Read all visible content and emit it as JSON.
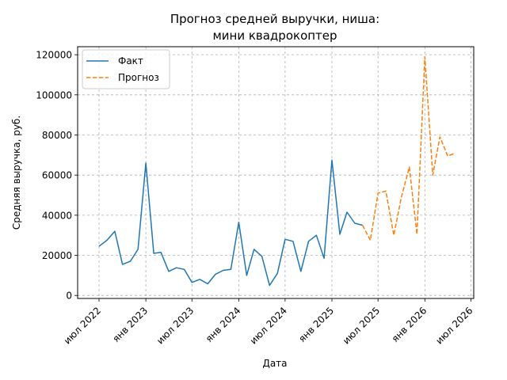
{
  "chart_data": {
    "type": "line",
    "title_lines": [
      "Прогноз средней выручки, ниша:",
      "мини квадрокоптер"
    ],
    "xlabel": "Дата",
    "ylabel": "Средняя выручка, руб.",
    "x_range": [
      "2022-04-08",
      "2026-07-12"
    ],
    "ylim": [
      -1500,
      124000
    ],
    "y_ticks": [
      0,
      20000,
      40000,
      60000,
      80000,
      100000,
      120000
    ],
    "y_tick_labels": [
      "0",
      "20000",
      "40000",
      "60000",
      "80000",
      "100000",
      "120000"
    ],
    "x_ticks": [
      {
        "date": "2022-07-01",
        "label": "июл 2022"
      },
      {
        "date": "2023-01-01",
        "label": "янв 2023"
      },
      {
        "date": "2023-07-01",
        "label": "июл 2023"
      },
      {
        "date": "2024-01-01",
        "label": "янв 2024"
      },
      {
        "date": "2024-07-01",
        "label": "июл 2024"
      },
      {
        "date": "2025-01-01",
        "label": "янв 2025"
      },
      {
        "date": "2025-07-01",
        "label": "июл 2025"
      },
      {
        "date": "2026-01-01",
        "label": "янв 2026"
      },
      {
        "date": "2026-07-01",
        "label": "июл 2026"
      }
    ],
    "grid": true,
    "legend_position": "top-left",
    "series": [
      {
        "name": "Факт",
        "style": "solid",
        "color": "#1f77b4",
        "points": [
          {
            "x": "2022-07-01",
            "y": 24500
          },
          {
            "x": "2022-08-01",
            "y": 27500
          },
          {
            "x": "2022-09-01",
            "y": 32000
          },
          {
            "x": "2022-10-01",
            "y": 15500
          },
          {
            "x": "2022-11-01",
            "y": 17000
          },
          {
            "x": "2022-12-01",
            "y": 23000
          },
          {
            "x": "2023-01-01",
            "y": 66000
          },
          {
            "x": "2023-02-01",
            "y": 21000
          },
          {
            "x": "2023-03-01",
            "y": 21500
          },
          {
            "x": "2023-04-01",
            "y": 12000
          },
          {
            "x": "2023-05-01",
            "y": 13800
          },
          {
            "x": "2023-06-01",
            "y": 13000
          },
          {
            "x": "2023-07-01",
            "y": 6500
          },
          {
            "x": "2023-08-01",
            "y": 8000
          },
          {
            "x": "2023-09-01",
            "y": 5800
          },
          {
            "x": "2023-10-01",
            "y": 10500
          },
          {
            "x": "2023-11-01",
            "y": 12500
          },
          {
            "x": "2023-12-01",
            "y": 13000
          },
          {
            "x": "2024-01-01",
            "y": 36500
          },
          {
            "x": "2024-02-01",
            "y": 10000
          },
          {
            "x": "2024-03-01",
            "y": 23000
          },
          {
            "x": "2024-04-01",
            "y": 19500
          },
          {
            "x": "2024-05-01",
            "y": 5000
          },
          {
            "x": "2024-06-01",
            "y": 11000
          },
          {
            "x": "2024-07-01",
            "y": 28000
          },
          {
            "x": "2024-08-01",
            "y": 27000
          },
          {
            "x": "2024-09-01",
            "y": 12000
          },
          {
            "x": "2024-10-01",
            "y": 27000
          },
          {
            "x": "2024-11-01",
            "y": 30000
          },
          {
            "x": "2024-12-01",
            "y": 18500
          },
          {
            "x": "2025-01-01",
            "y": 67500
          },
          {
            "x": "2025-02-01",
            "y": 30500
          },
          {
            "x": "2025-03-01",
            "y": 41500
          },
          {
            "x": "2025-04-01",
            "y": 36000
          },
          {
            "x": "2025-05-01",
            "y": 35000
          }
        ]
      },
      {
        "name": "Прогноз",
        "style": "dashed",
        "color": "#ff7f0e",
        "points": [
          {
            "x": "2025-05-01",
            "y": 35000
          },
          {
            "x": "2025-06-01",
            "y": 27500
          },
          {
            "x": "2025-07-01",
            "y": 51000
          },
          {
            "x": "2025-08-01",
            "y": 52000
          },
          {
            "x": "2025-09-01",
            "y": 30000
          },
          {
            "x": "2025-10-01",
            "y": 49000
          },
          {
            "x": "2025-11-01",
            "y": 64000
          },
          {
            "x": "2025-12-01",
            "y": 30500
          },
          {
            "x": "2026-01-01",
            "y": 119000
          },
          {
            "x": "2026-02-01",
            "y": 60000
          },
          {
            "x": "2026-03-01",
            "y": 79000
          },
          {
            "x": "2026-04-01",
            "y": 69500
          },
          {
            "x": "2026-05-01",
            "y": 71000
          }
        ]
      }
    ]
  }
}
